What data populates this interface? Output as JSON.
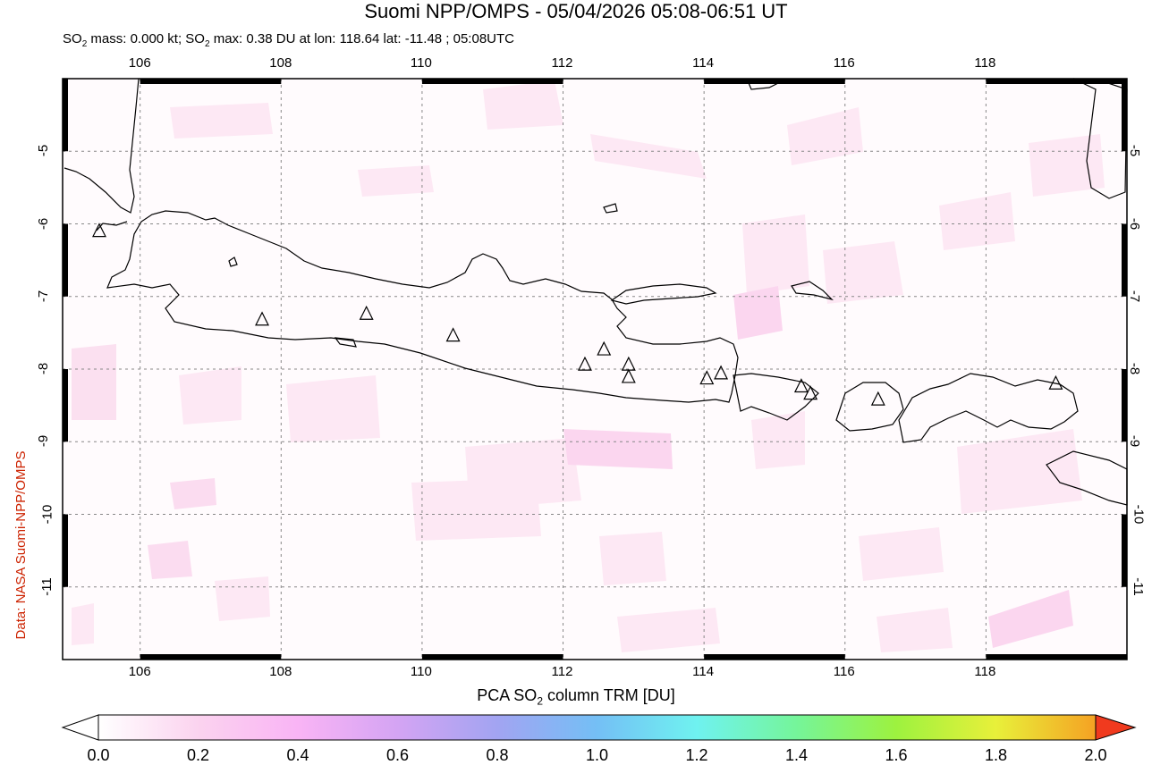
{
  "header": {
    "title": "Suomi NPP/OMPS - 05/04/2026 05:08-06:51 UT",
    "subtitle_prefix": "SO",
    "subtitle_sub1": "2",
    "subtitle_mid": " mass: 0.000 kt; SO",
    "subtitle_sub2": "2",
    "subtitle_rest": " max: 0.38 DU at lon: 118.64 lat: -11.48 ; 05:08UTC"
  },
  "credit": "Data: NASA Suomi-NPP/OMPS",
  "map": {
    "lon_range": [
      104.9,
      120.0
    ],
    "lat_range": [
      -12.0,
      -4.0
    ],
    "lon_ticks": [
      "106",
      "108",
      "110",
      "112",
      "114",
      "116",
      "118"
    ],
    "lat_ticks": [
      "-5",
      "-6",
      "-7",
      "-8",
      "-9",
      "-10",
      "-11"
    ],
    "gridlines": true,
    "volcano_marker": "triangle-icon",
    "volcanoes": [
      {
        "lon": 105.42,
        "lat": -6.1
      },
      {
        "lon": 107.73,
        "lat": -7.32
      },
      {
        "lon": 109.21,
        "lat": -7.24
      },
      {
        "lon": 110.44,
        "lat": -7.54
      },
      {
        "lon": 112.31,
        "lat": -7.94
      },
      {
        "lon": 112.58,
        "lat": -7.73
      },
      {
        "lon": 112.93,
        "lat": -7.94
      },
      {
        "lon": 112.93,
        "lat": -8.11
      },
      {
        "lon": 114.04,
        "lat": -8.13
      },
      {
        "lon": 114.24,
        "lat": -8.06
      },
      {
        "lon": 115.38,
        "lat": -8.24
      },
      {
        "lon": 115.51,
        "lat": -8.34
      },
      {
        "lon": 116.47,
        "lat": -8.42
      },
      {
        "lon": 118.99,
        "lat": -8.2
      }
    ]
  },
  "colorbar": {
    "label_prefix": "PCA SO",
    "label_sub": "2",
    "label_suffix": " column TRM [DU]",
    "ticks": [
      "0.0",
      "0.2",
      "0.4",
      "0.6",
      "0.8",
      "1.0",
      "1.2",
      "1.4",
      "1.6",
      "1.8",
      "2.0"
    ],
    "colors": [
      "#ffffff",
      "#fbd3ef",
      "#f9b4f5",
      "#d4a4f3",
      "#a2a4f2",
      "#74bff5",
      "#6ff2f0",
      "#75f59a",
      "#9df23f",
      "#e8f03a",
      "#f5a223",
      "#f03a1e"
    ]
  }
}
